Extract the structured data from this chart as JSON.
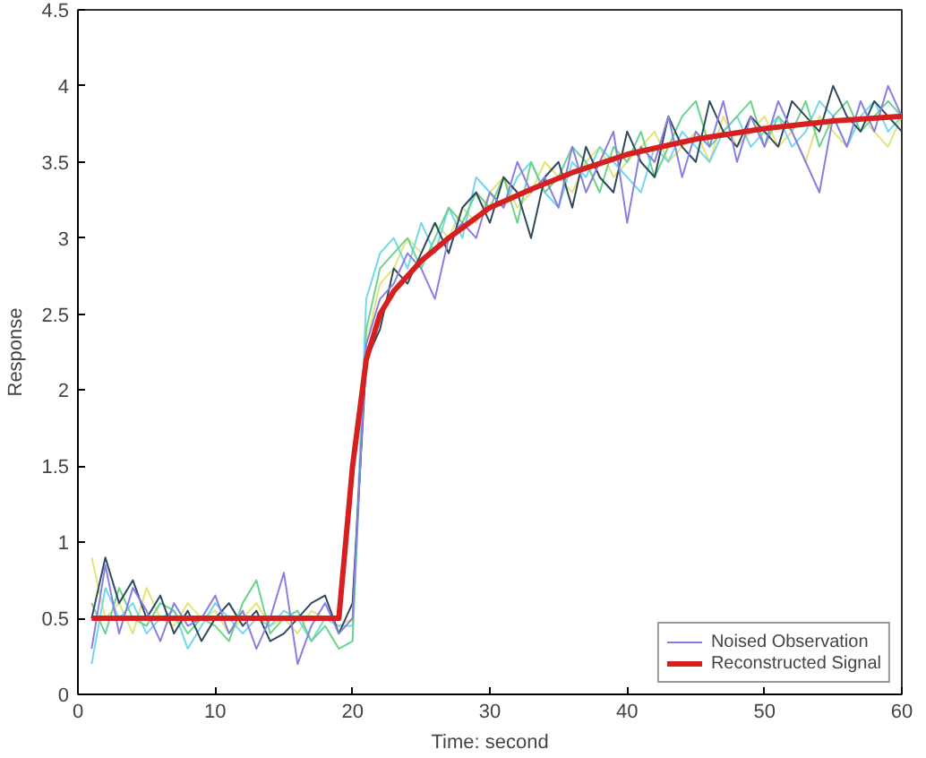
{
  "chart_data": {
    "type": "line",
    "xlabel": "Time: second",
    "ylabel": "Response",
    "x": [
      1,
      2,
      3,
      4,
      5,
      6,
      7,
      8,
      9,
      10,
      11,
      12,
      13,
      14,
      15,
      16,
      17,
      18,
      19,
      20,
      21,
      22,
      23,
      24,
      25,
      26,
      27,
      28,
      29,
      30,
      31,
      32,
      33,
      34,
      35,
      36,
      37,
      38,
      39,
      40,
      41,
      42,
      43,
      44,
      45,
      46,
      47,
      48,
      49,
      50,
      51,
      52,
      53,
      54,
      55,
      56,
      57,
      58,
      59,
      60
    ],
    "xlim": [
      0,
      60
    ],
    "xticks": [
      0,
      10,
      20,
      30,
      40,
      50,
      60
    ],
    "ylim": [
      0,
      4.5
    ],
    "yticks": [
      0,
      0.5,
      1,
      1.5,
      2,
      2.5,
      3,
      3.5,
      4,
      4.5
    ],
    "grid": false,
    "legend": "bottom right",
    "marker": "none",
    "line_style": "solid",
    "series": [
      {
        "color": "#e6e27a",
        "values": [
          0.9,
          0.5,
          0.6,
          0.4,
          0.7,
          0.5,
          0.45,
          0.6,
          0.5,
          0.55,
          0.4,
          0.5,
          0.6,
          0.45,
          0.5,
          0.4,
          0.55,
          0.5,
          0.45,
          0.5,
          2.3,
          2.7,
          2.8,
          3.0,
          2.9,
          3.1,
          3.0,
          3.2,
          3.1,
          3.3,
          3.4,
          3.2,
          3.3,
          3.5,
          3.4,
          3.3,
          3.5,
          3.6,
          3.4,
          3.5,
          3.6,
          3.7,
          3.5,
          3.6,
          3.7,
          3.5,
          3.8,
          3.6,
          3.7,
          3.8,
          3.6,
          3.7,
          3.5,
          3.8,
          3.7,
          3.6,
          3.8,
          3.7,
          3.6,
          3.8
        ]
      },
      {
        "color": "#72d8ea",
        "values": [
          0.2,
          0.7,
          0.5,
          0.6,
          0.4,
          0.5,
          0.55,
          0.3,
          0.45,
          0.6,
          0.5,
          0.4,
          0.5,
          0.45,
          0.55,
          0.5,
          0.35,
          0.5,
          0.45,
          0.45,
          2.6,
          2.9,
          3.0,
          2.8,
          3.1,
          2.9,
          3.2,
          3.0,
          3.4,
          3.3,
          3.2,
          3.4,
          3.5,
          3.3,
          3.2,
          3.5,
          3.4,
          3.6,
          3.5,
          3.4,
          3.3,
          3.6,
          3.5,
          3.7,
          3.6,
          3.5,
          3.7,
          3.8,
          3.6,
          3.7,
          3.8,
          3.6,
          3.7,
          3.9,
          3.8,
          3.6,
          3.8,
          3.9,
          3.7,
          3.8
        ]
      },
      {
        "color": "#6ad48e",
        "values": [
          0.6,
          0.4,
          0.7,
          0.5,
          0.45,
          0.6,
          0.55,
          0.4,
          0.5,
          0.45,
          0.35,
          0.6,
          0.75,
          0.4,
          0.5,
          0.55,
          0.35,
          0.45,
          0.3,
          0.35,
          2.4,
          2.8,
          2.9,
          3.0,
          2.8,
          3.0,
          3.2,
          3.1,
          3.3,
          3.2,
          3.4,
          3.1,
          3.5,
          3.3,
          3.4,
          3.6,
          3.5,
          3.3,
          3.6,
          3.5,
          3.7,
          3.4,
          3.6,
          3.8,
          3.9,
          3.6,
          3.7,
          3.8,
          3.9,
          3.6,
          3.8,
          3.7,
          3.9,
          3.6,
          3.8,
          3.9,
          3.7,
          3.8,
          3.9,
          3.8
        ]
      },
      {
        "color": "#2e4a5c",
        "values": [
          0.5,
          0.9,
          0.6,
          0.75,
          0.5,
          0.65,
          0.4,
          0.55,
          0.35,
          0.5,
          0.6,
          0.45,
          0.55,
          0.35,
          0.4,
          0.5,
          0.6,
          0.65,
          0.4,
          0.6,
          2.2,
          2.4,
          2.8,
          2.7,
          2.9,
          3.1,
          2.9,
          3.2,
          3.3,
          3.1,
          3.4,
          3.3,
          3.0,
          3.4,
          3.5,
          3.2,
          3.6,
          3.4,
          3.3,
          3.7,
          3.5,
          3.4,
          3.8,
          3.6,
          3.5,
          3.9,
          3.7,
          3.6,
          3.8,
          3.7,
          3.6,
          3.9,
          3.8,
          3.7,
          4.0,
          3.8,
          3.7,
          3.9,
          3.8,
          3.7
        ]
      },
      {
        "name": "Noised Observation",
        "color": "#8a7fe0",
        "values": [
          0.3,
          0.85,
          0.4,
          0.7,
          0.55,
          0.35,
          0.6,
          0.45,
          0.5,
          0.65,
          0.4,
          0.55,
          0.3,
          0.5,
          0.8,
          0.2,
          0.45,
          0.6,
          0.4,
          0.5,
          2.3,
          2.6,
          2.7,
          2.9,
          2.8,
          2.6,
          3.0,
          3.1,
          3.0,
          3.3,
          3.2,
          3.5,
          3.3,
          3.4,
          3.2,
          3.6,
          3.3,
          3.5,
          3.7,
          3.1,
          3.6,
          3.5,
          3.8,
          3.4,
          3.7,
          3.6,
          3.9,
          3.5,
          3.8,
          3.6,
          3.9,
          3.7,
          3.5,
          3.3,
          3.8,
          3.6,
          3.9,
          3.7,
          4.0,
          3.8
        ]
      },
      {
        "name": "Reconstructed Signal",
        "color": "#d62020",
        "x": [
          1,
          19,
          20,
          21,
          22,
          23,
          24,
          25,
          27,
          30,
          33,
          36,
          40,
          45,
          50,
          55,
          60
        ],
        "values": [
          0.5,
          0.5,
          1.5,
          2.2,
          2.5,
          2.65,
          2.75,
          2.85,
          3.0,
          3.2,
          3.32,
          3.43,
          3.55,
          3.65,
          3.72,
          3.77,
          3.8
        ]
      }
    ]
  }
}
